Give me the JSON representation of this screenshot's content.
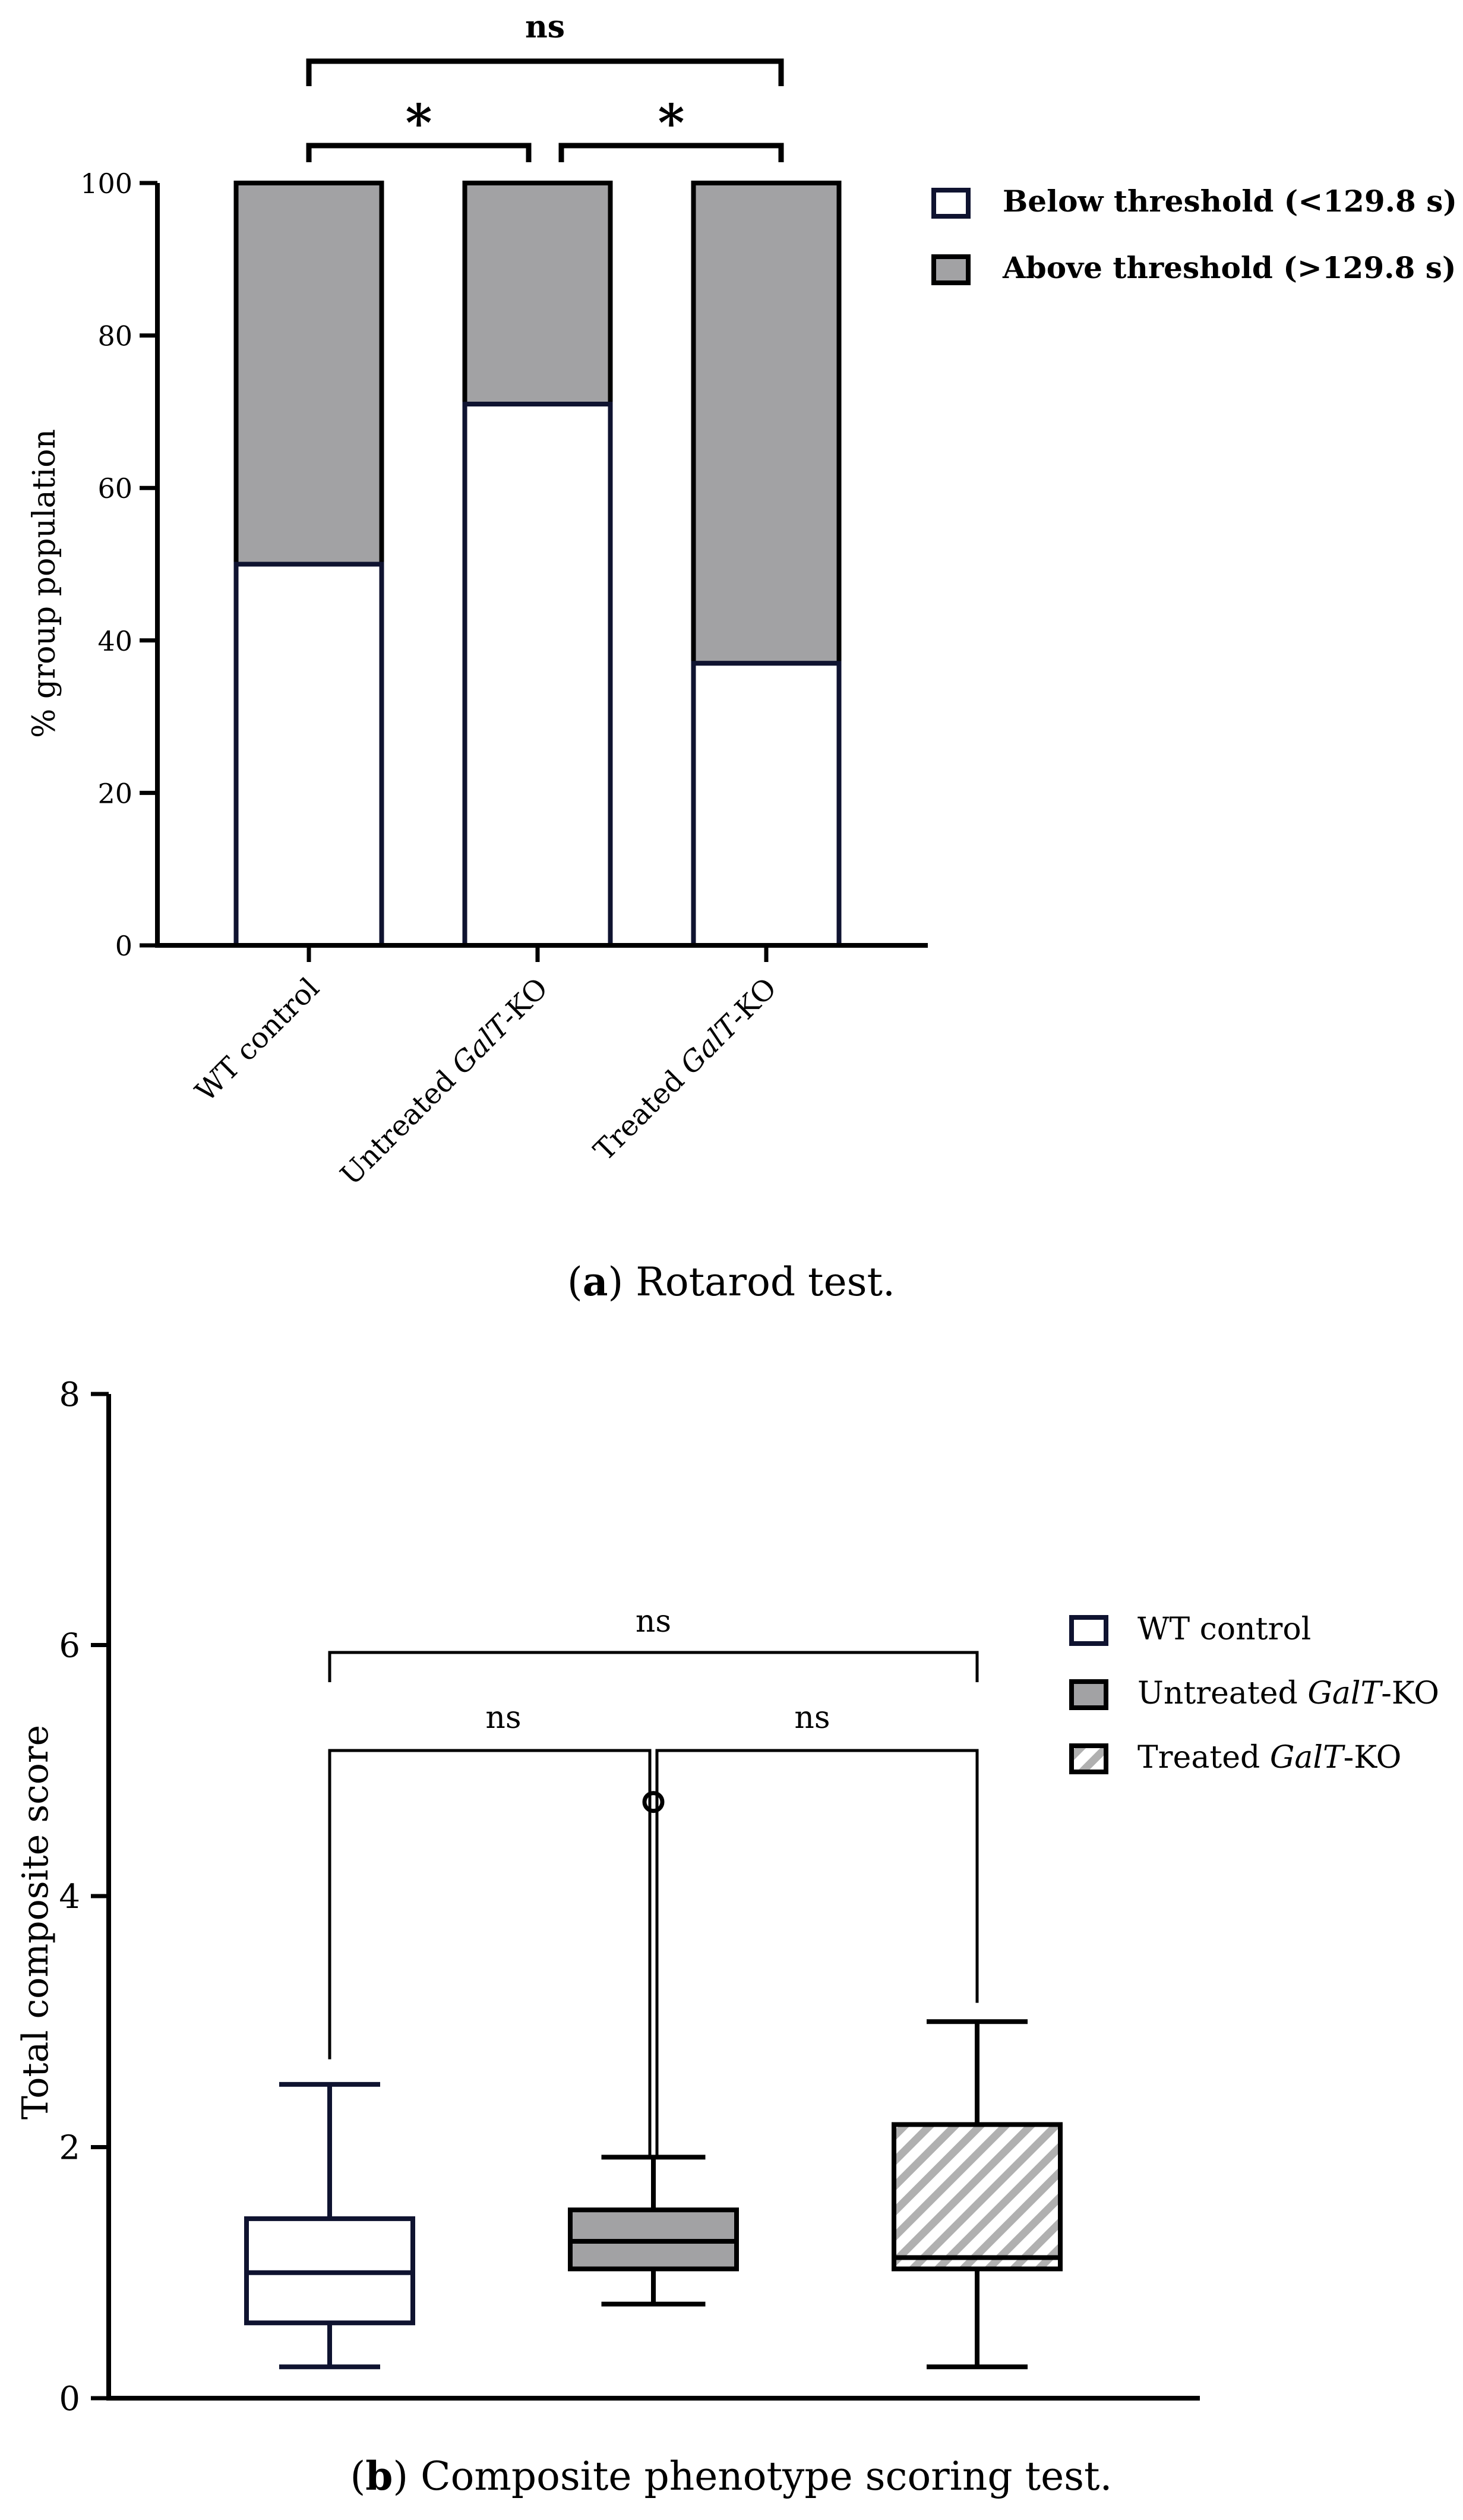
{
  "colors": {
    "navy": "#0f1330",
    "black": "#000000",
    "gray": "#a2a2a4",
    "hatch": "#b0b0b0",
    "white": "#ffffff"
  },
  "chart_data": [
    {
      "type": "bar",
      "stacked": true,
      "panel_label": "a",
      "caption": "Rotarod test.",
      "ylabel": "% group population",
      "ylim": [
        0,
        100
      ],
      "yticks": [
        "0",
        "20",
        "40",
        "60",
        "80",
        "100"
      ],
      "categories": [
        {
          "pre": "WT control",
          "italic": "",
          "post": ""
        },
        {
          "pre": "Untreated ",
          "italic": "GalT",
          "post": "-KO"
        },
        {
          "pre": "Treated ",
          "italic": "GalT",
          "post": "-KO"
        }
      ],
      "series": [
        {
          "name": "Below threshold (<129.8 s)",
          "values": [
            50,
            71,
            37
          ]
        },
        {
          "name": "Above threshold (>129.8 s)",
          "values": [
            50,
            29,
            63
          ]
        }
      ],
      "significance": [
        {
          "groups": [
            0,
            1
          ],
          "label": "*"
        },
        {
          "groups": [
            1,
            2
          ],
          "label": "*"
        },
        {
          "groups": [
            0,
            2
          ],
          "label": "ns"
        }
      ]
    },
    {
      "type": "box",
      "panel_label": "b",
      "caption": "Composite phenotype scoring test.",
      "ylabel": "Total composite score",
      "ylim": [
        0,
        8
      ],
      "yticks": [
        "0",
        "2",
        "4",
        "6",
        "8"
      ],
      "groups": [
        {
          "pre": "WT control",
          "italic": "",
          "post": "",
          "min": 0.25,
          "q1": 0.6,
          "median": 1.0,
          "q3": 1.43,
          "max": 2.5,
          "outliers": []
        },
        {
          "pre": "Untreated ",
          "italic": "GalT",
          "post": "-KO",
          "min": 0.75,
          "q1": 1.03,
          "median": 1.25,
          "q3": 1.5,
          "max": 1.92,
          "outliers": [
            4.75
          ]
        },
        {
          "pre": "Treated ",
          "italic": "GalT",
          "post": "-KO",
          "min": 0.25,
          "q1": 1.03,
          "median": 1.12,
          "q3": 2.18,
          "max": 3.0,
          "outliers": []
        }
      ],
      "significance": [
        {
          "groups": [
            0,
            1
          ],
          "label": "ns"
        },
        {
          "groups": [
            1,
            2
          ],
          "label": "ns"
        },
        {
          "groups": [
            0,
            2
          ],
          "label": "ns"
        }
      ]
    }
  ]
}
